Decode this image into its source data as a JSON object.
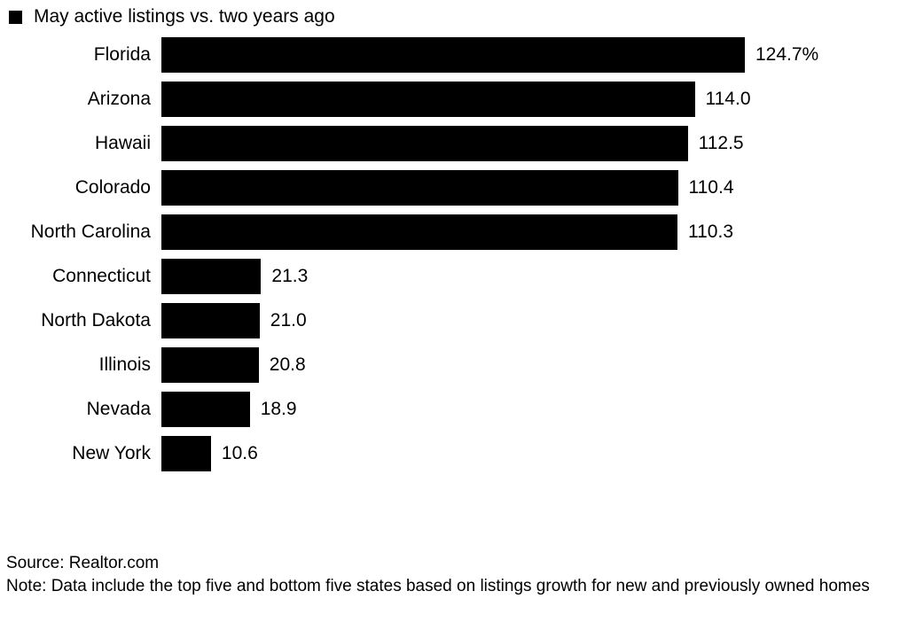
{
  "chart_data": {
    "type": "bar",
    "orientation": "horizontal",
    "title": "May active listings vs. two years ago",
    "categories": [
      "Florida",
      "Arizona",
      "Hawaii",
      "Colorado",
      "North Carolina",
      "Connecticut",
      "North Dakota",
      "Illinois",
      "Nevada",
      "New York"
    ],
    "values": [
      124.7,
      114.0,
      112.5,
      110.4,
      110.3,
      21.3,
      21.0,
      20.8,
      18.9,
      10.6
    ],
    "value_labels": [
      "124.7%",
      "114.0",
      "112.5",
      "110.4",
      "110.3",
      "21.3",
      "21.0",
      "20.8",
      "18.9",
      "10.6"
    ],
    "xlim": [
      0,
      124.7
    ],
    "grid": false,
    "legend_position": "top-left",
    "bar_color": "#000000",
    "background_color": "#ffffff",
    "unit": "%"
  },
  "legend": {
    "label": "May active listings vs. two years ago"
  },
  "footer": {
    "source": "Source: Realtor.com",
    "note": "Note: Data include the top five and bottom five states based on listings growth for new and previously owned homes"
  }
}
